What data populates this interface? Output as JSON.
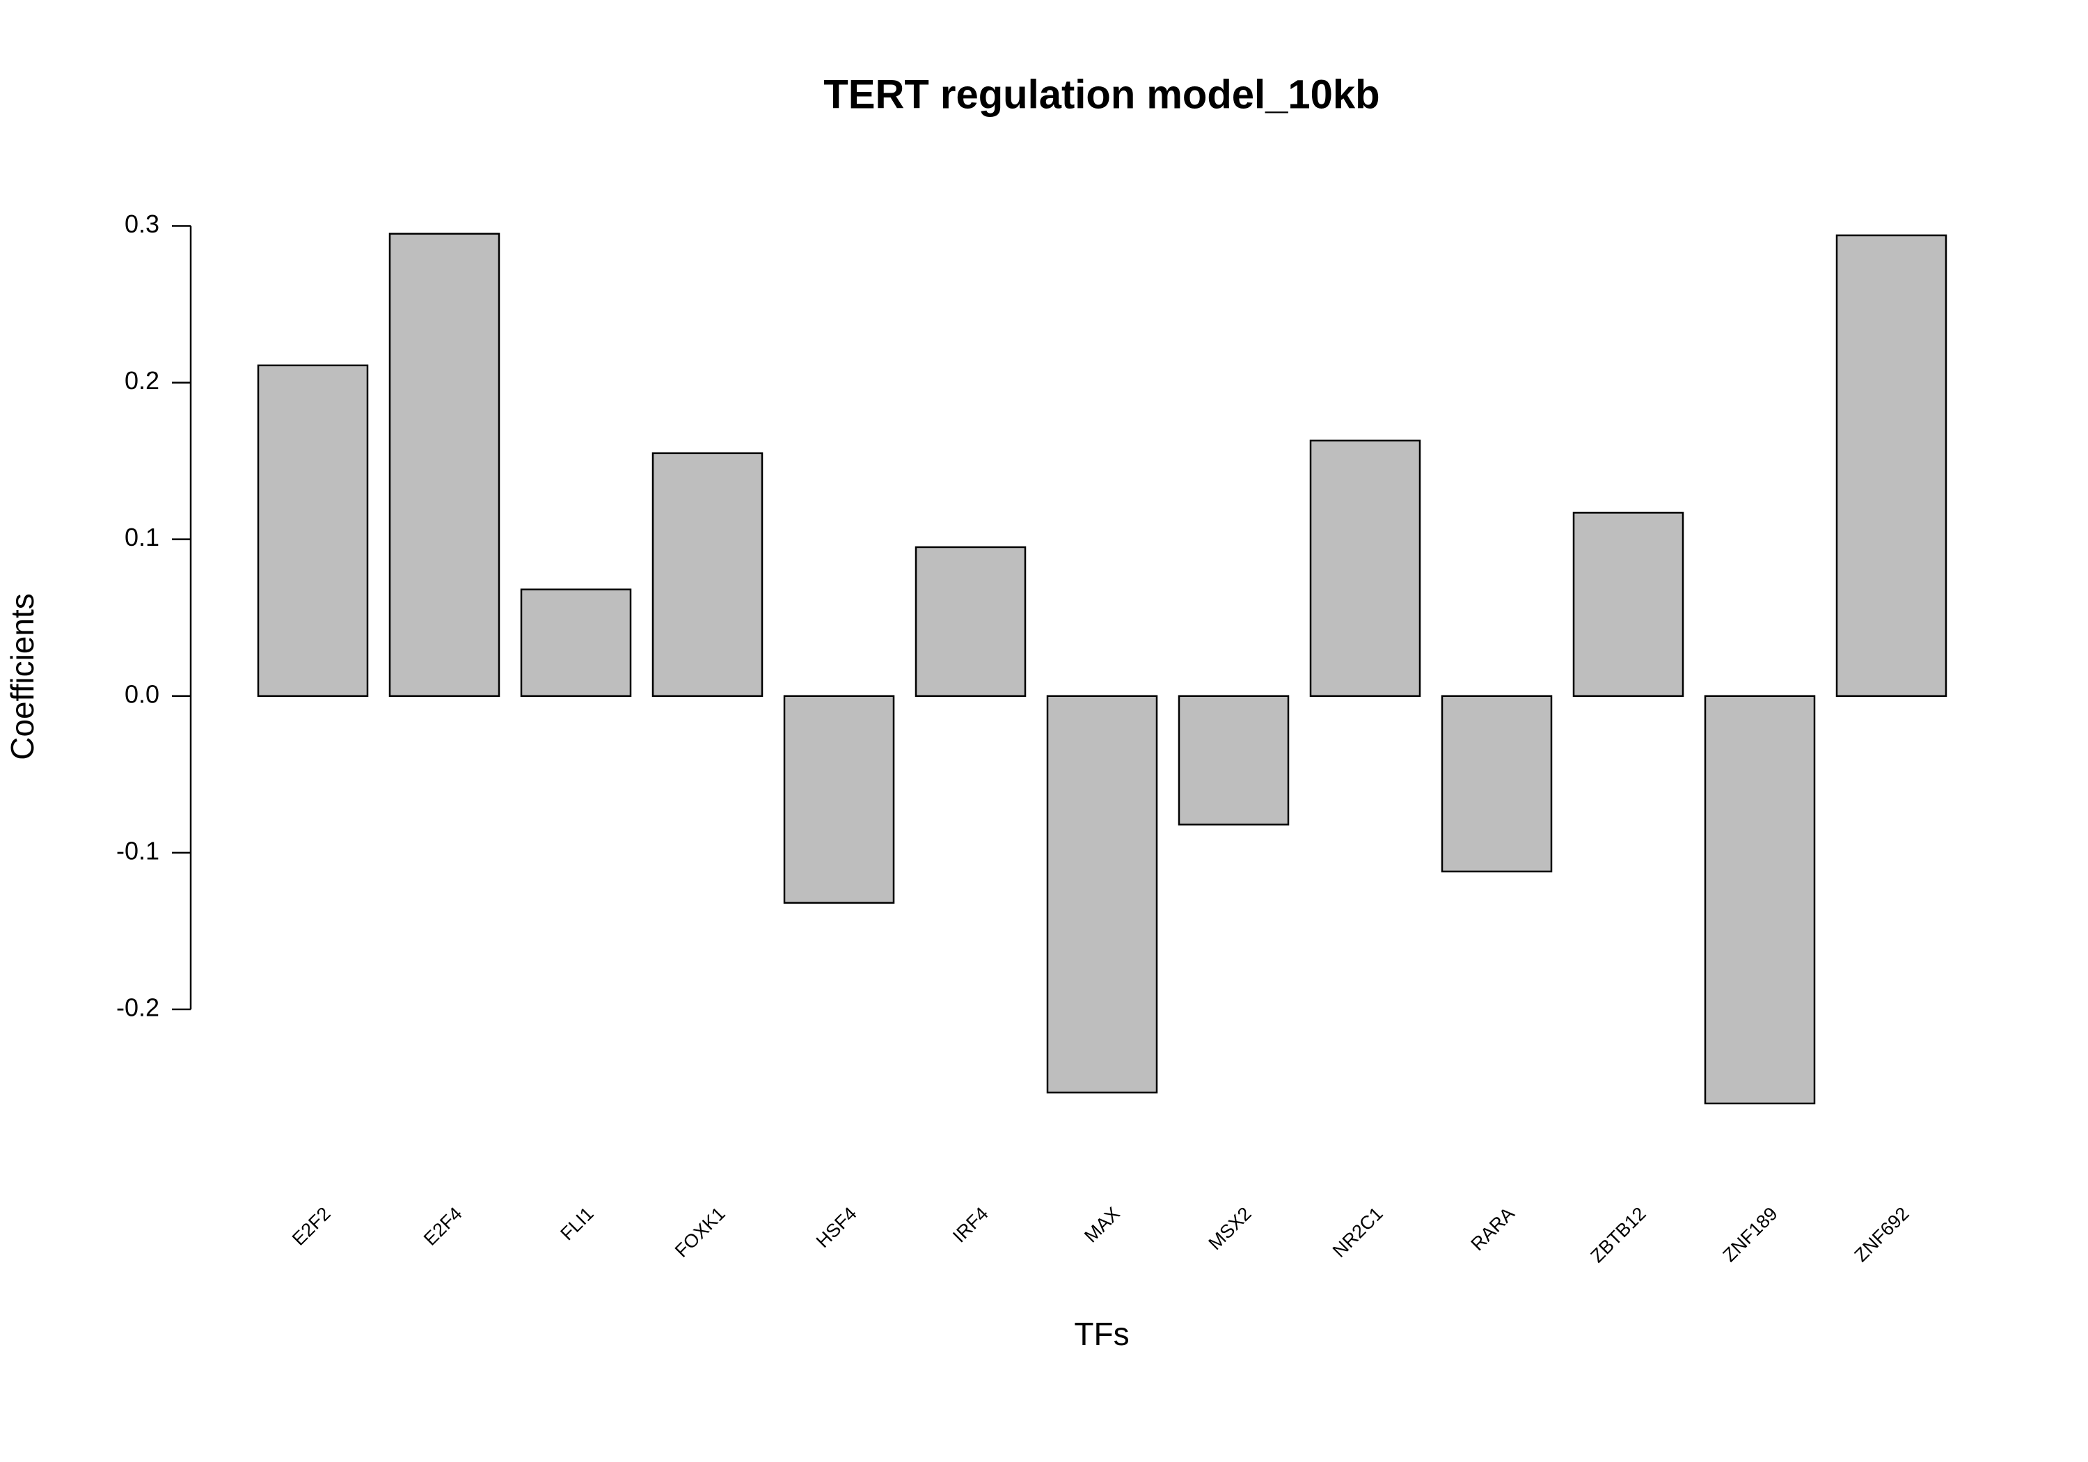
{
  "chart_data": {
    "type": "bar",
    "title": "TERT regulation model_10kb",
    "x_label": "TFs",
    "y_label": "Coefficients",
    "categories": [
      "E2F2",
      "E2F4",
      "FLI1",
      "FOXK1",
      "HSF4",
      "IRF4",
      "MAX",
      "MSX2",
      "NR2C1",
      "RARA",
      "ZBTB12",
      "ZNF189",
      "ZNF692"
    ],
    "values": [
      0.211,
      0.295,
      0.068,
      0.155,
      -0.132,
      0.095,
      -0.253,
      -0.082,
      0.163,
      -0.112,
      0.117,
      -0.26,
      0.294
    ],
    "color": "#bebebe",
    "ylim": [
      -0.28,
      0.31
    ],
    "yticks": [
      {
        "value": -0.2,
        "label": "-0.2"
      },
      {
        "value": -0.1,
        "label": "-0.1"
      },
      {
        "value": 0,
        "label": "0.0"
      },
      0.1,
      0.2,
      0.3
    ],
    "grid": false
  }
}
